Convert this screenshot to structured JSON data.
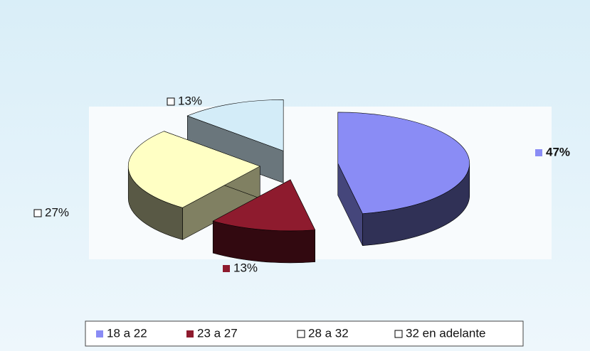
{
  "chart_data": {
    "type": "pie",
    "categories": [
      "18 a 22",
      "23 a 27",
      "28 a 32",
      "32 en adelante"
    ],
    "values": [
      47,
      13,
      27,
      13
    ],
    "value_labels": [
      "47%",
      "13%",
      "27%",
      "13%"
    ],
    "colors": [
      "#8a8cf5",
      "#8e1b2e",
      "#ffffc4",
      "#d3ecf8"
    ],
    "legend": "bottom"
  }
}
